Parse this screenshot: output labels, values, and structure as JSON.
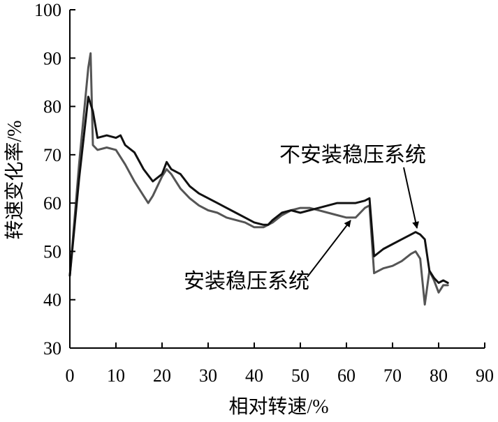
{
  "chart_data": {
    "type": "line",
    "xlabel": "相对转速/%",
    "ylabel": "转速变化率/%",
    "xlim": [
      0,
      90
    ],
    "ylim": [
      30,
      100
    ],
    "x_ticks": [
      0,
      10,
      20,
      30,
      40,
      50,
      60,
      70,
      80,
      90
    ],
    "y_ticks": [
      30,
      40,
      50,
      60,
      70,
      80,
      90,
      100
    ],
    "grid": false,
    "legend": "none",
    "colors": {
      "without_regulator": "#111111",
      "with_regulator": "#555555",
      "axis": "#000000"
    },
    "series": [
      {
        "key": "without_regulator",
        "x": [
          0,
          2,
          4,
          5,
          6,
          8,
          10,
          11,
          12,
          14,
          16,
          18,
          20,
          21,
          22,
          24,
          26,
          28,
          30,
          32,
          34,
          36,
          38,
          40,
          42,
          43,
          44,
          46,
          48,
          50,
          52,
          54,
          56,
          58,
          60,
          62,
          64,
          65,
          66,
          68,
          70,
          72,
          74,
          75,
          76,
          77,
          78,
          79,
          80,
          81,
          82
        ],
        "y": [
          45,
          65,
          82,
          79,
          73.5,
          74,
          73.5,
          74,
          72,
          70.5,
          67,
          64.5,
          66,
          68.5,
          67,
          66,
          63.5,
          62,
          61,
          60,
          59,
          58,
          57,
          56,
          55.5,
          55.5,
          56.5,
          58,
          58.5,
          58,
          58.5,
          59,
          59.5,
          60,
          60,
          60,
          60.5,
          61,
          49,
          50.5,
          51.5,
          52.5,
          53.5,
          54,
          53.5,
          52.5,
          46,
          44.5,
          43.5,
          44,
          43.5
        ]
      },
      {
        "key": "with_regulator",
        "x": [
          0,
          2,
          4,
          4.5,
          5,
          6,
          8,
          10,
          12,
          14,
          16,
          17,
          18,
          20,
          21,
          22,
          24,
          26,
          28,
          30,
          32,
          34,
          36,
          38,
          40,
          42,
          44,
          46,
          48,
          50,
          52,
          54,
          56,
          58,
          60,
          62,
          64,
          65,
          66,
          68,
          70,
          72,
          74,
          75,
          76,
          77,
          78,
          79,
          80,
          81,
          82
        ],
        "y": [
          45,
          68,
          88,
          91,
          72,
          71,
          71.5,
          71,
          68,
          64.5,
          61.5,
          60,
          61.5,
          65.5,
          67,
          66,
          63,
          61,
          59.5,
          58.5,
          58,
          57,
          56.5,
          56,
          55,
          55,
          56,
          57.5,
          58.5,
          59,
          59,
          58.5,
          58,
          57.5,
          57,
          57,
          59,
          59.5,
          45.5,
          46.5,
          47,
          48,
          49.5,
          50,
          48.5,
          39,
          46,
          44,
          41.5,
          43,
          43
        ]
      }
    ],
    "annotations": [
      {
        "text": "不安装稳压系统",
        "target_series": "without_regulator",
        "target_x": 75.5,
        "target_y": 54.5
      },
      {
        "text": "安装稳压系统",
        "target_series": "with_regulator",
        "target_x": 61,
        "target_y": 58
      }
    ]
  }
}
